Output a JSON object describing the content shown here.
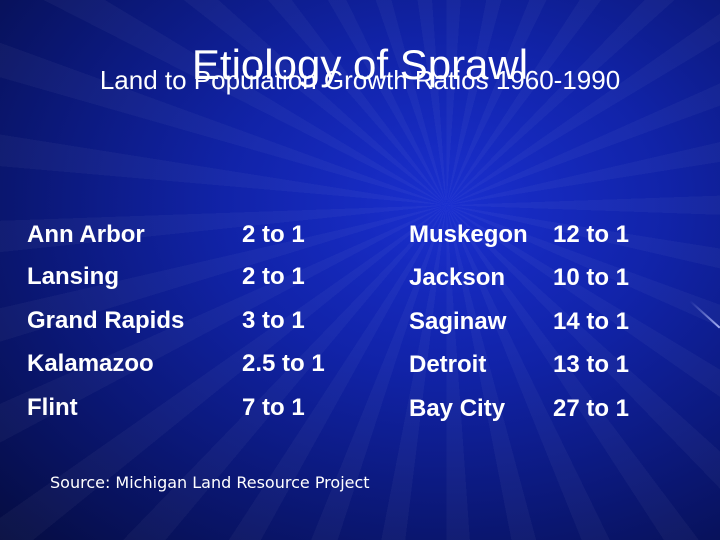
{
  "slide": {
    "title": "Etiology of Sprawl",
    "subtitle": "Land to Population Growth Ratios 1960-1990",
    "source": "Source:  Michigan Land Resource Project"
  },
  "rows": [
    {
      "city_a": "Ann Arbor",
      "ratio_a": "2 to 1",
      "city_b": "Muskegon",
      "ratio_b": "12 to 1"
    },
    {
      "city_a": "Lansing",
      "ratio_a": "2 to 1",
      "city_b": "Jackson",
      "ratio_b": "10 to 1"
    },
    {
      "city_a": "Grand Rapids",
      "ratio_a": "3 to 1",
      "city_b": "Saginaw",
      "ratio_b": "14 to 1"
    },
    {
      "city_a": "Kalamazoo",
      "ratio_a": "2.5 to 1",
      "city_b": "Detroit",
      "ratio_b": "13 to 1"
    },
    {
      "city_a": "Flint",
      "ratio_a": "7 to 1",
      "city_b": "Bay City",
      "ratio_b": "27 to 1"
    }
  ]
}
